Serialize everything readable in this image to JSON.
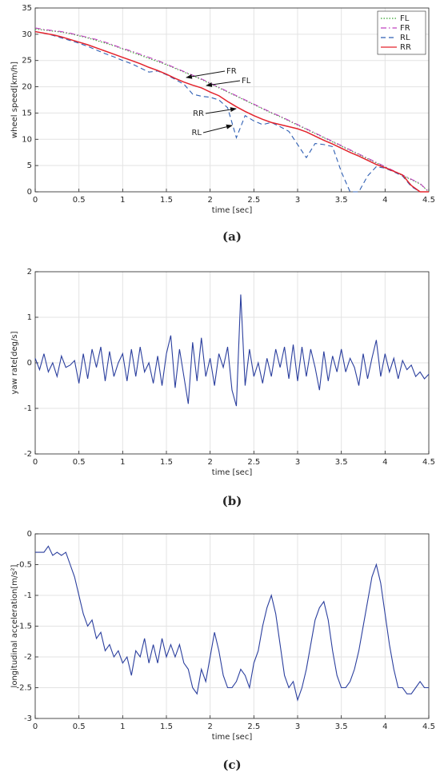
{
  "chart_data": [
    {
      "type": "line",
      "caption": "(a)",
      "xlabel": "time [sec]",
      "ylabel": "wheel speed[km/h]",
      "xlim": [
        0,
        4.5
      ],
      "ylim": [
        0,
        35
      ],
      "xticks": [
        0,
        0.5,
        1,
        1.5,
        2,
        2.5,
        3,
        3.5,
        4,
        4.5
      ],
      "yticks": [
        0,
        5,
        10,
        15,
        20,
        25,
        30,
        35
      ],
      "grid": true,
      "legend": "upper right",
      "annotations": [
        "FR",
        "FL",
        "RR",
        "RL"
      ],
      "x": [
        0,
        0.1,
        0.2,
        0.3,
        0.4,
        0.5,
        0.6,
        0.7,
        0.8,
        0.9,
        1,
        1.1,
        1.2,
        1.3,
        1.4,
        1.5,
        1.6,
        1.7,
        1.8,
        1.9,
        2,
        2.1,
        2.2,
        2.3,
        2.4,
        2.5,
        2.6,
        2.7,
        2.8,
        2.9,
        3,
        3.1,
        3.2,
        3.3,
        3.4,
        3.5,
        3.6,
        3.7,
        3.8,
        3.9,
        4,
        4.1,
        4.2,
        4.3,
        4.4,
        4.5
      ],
      "series": [
        {
          "name": "FL",
          "color": "#33a02c",
          "linestyle": "dotted",
          "values": [
            31,
            30.8,
            30.6,
            30.4,
            30.1,
            29.7,
            29.3,
            28.8,
            28.3,
            27.8,
            27.2,
            26.6,
            26,
            25.4,
            24.8,
            24.2,
            23.5,
            22.8,
            22.1,
            21.4,
            20.6,
            19.8,
            19,
            18.2,
            17.4,
            16.6,
            15.8,
            15,
            14.3,
            13.5,
            12.7,
            11.9,
            11.1,
            10.3,
            9.5,
            8.7,
            7.9,
            7.1,
            6.3,
            5.5,
            4.7,
            3.9,
            3.1,
            2.3,
            1.5,
            0
          ]
        },
        {
          "name": "FR",
          "color": "#bf40bf",
          "linestyle": "dashdot",
          "values": [
            31.2,
            30.9,
            30.7,
            30.5,
            30.2,
            29.8,
            29.4,
            29,
            28.5,
            27.9,
            27.3,
            26.8,
            26.2,
            25.6,
            25,
            24.3,
            23.6,
            22.9,
            22.2,
            21.5,
            20.7,
            19.9,
            19.1,
            18.3,
            17.5,
            16.7,
            15.9,
            15.1,
            14.4,
            13.6,
            12.8,
            12,
            11.2,
            10.4,
            9.6,
            8.8,
            8,
            7.2,
            6.4,
            5.6,
            4.8,
            4,
            3.2,
            2.4,
            1.6,
            0
          ]
        },
        {
          "name": "RL",
          "color": "#2f5fb3",
          "linestyle": "dashed",
          "values": [
            30.5,
            30.2,
            29.8,
            29.3,
            28.8,
            28.3,
            27.7,
            27,
            26.3,
            25.7,
            25,
            24.4,
            23.6,
            22.8,
            23,
            22.3,
            21.4,
            20.5,
            18.6,
            18.2,
            18,
            17.5,
            16,
            10.3,
            14.5,
            13.5,
            12.8,
            13.2,
            12.4,
            11.5,
            9,
            6.5,
            9.2,
            9,
            8.6,
            3.8,
            0,
            0,
            3,
            4.8,
            4.5,
            3.8,
            3,
            1,
            0,
            0
          ]
        },
        {
          "name": "RR",
          "color": "#e3232c",
          "linestyle": "solid",
          "values": [
            30.5,
            30.2,
            29.9,
            29.5,
            29,
            28.5,
            28,
            27.4,
            26.8,
            26.2,
            25.6,
            25,
            24.4,
            23.7,
            23.1,
            22.4,
            21.6,
            20.9,
            20.3,
            19.8,
            19,
            18.3,
            17.2,
            16.2,
            15.3,
            14.5,
            13.8,
            13.2,
            12.8,
            12.4,
            12,
            11.4,
            10.6,
            9.8,
            9.1,
            8.3,
            7.5,
            6.8,
            6,
            5.2,
            4.6,
            3.9,
            3.2,
            1.2,
            0,
            0
          ]
        }
      ]
    },
    {
      "type": "line",
      "caption": "(b)",
      "xlabel": "time [sec]",
      "ylabel": "yaw rate[deg/s]",
      "xlim": [
        0,
        4.5
      ],
      "ylim": [
        -2,
        2
      ],
      "xticks": [
        0,
        0.5,
        1,
        1.5,
        2,
        2.5,
        3,
        3.5,
        4,
        4.5
      ],
      "yticks": [
        -2,
        -1,
        0,
        1,
        2
      ],
      "grid": true,
      "x": [
        0,
        0.05,
        0.1,
        0.15,
        0.2,
        0.25,
        0.3,
        0.35,
        0.4,
        0.45,
        0.5,
        0.55,
        0.6,
        0.65,
        0.7,
        0.75,
        0.8,
        0.85,
        0.9,
        0.95,
        1,
        1.05,
        1.1,
        1.15,
        1.2,
        1.25,
        1.3,
        1.35,
        1.4,
        1.45,
        1.5,
        1.55,
        1.6,
        1.65,
        1.7,
        1.75,
        1.8,
        1.85,
        1.9,
        1.95,
        2,
        2.05,
        2.1,
        2.15,
        2.2,
        2.25,
        2.3,
        2.35,
        2.4,
        2.45,
        2.5,
        2.55,
        2.6,
        2.65,
        2.7,
        2.75,
        2.8,
        2.85,
        2.9,
        2.95,
        3,
        3.05,
        3.1,
        3.15,
        3.2,
        3.25,
        3.3,
        3.35,
        3.4,
        3.45,
        3.5,
        3.55,
        3.6,
        3.65,
        3.7,
        3.75,
        3.8,
        3.85,
        3.9,
        3.95,
        4,
        4.05,
        4.1,
        4.15,
        4.2,
        4.25,
        4.3,
        4.35,
        4.4,
        4.45,
        4.5
      ],
      "series": [
        {
          "name": "yaw rate",
          "color": "#2b3f9e",
          "linestyle": "solid",
          "values": [
            0.1,
            -0.15,
            0.2,
            -0.2,
            0,
            -0.3,
            0.15,
            -0.1,
            -0.05,
            0.05,
            -0.45,
            0.2,
            -0.35,
            0.3,
            -0.1,
            0.35,
            -0.4,
            0.25,
            -0.3,
            0,
            0.2,
            -0.4,
            0.3,
            -0.3,
            0.35,
            -0.2,
            0,
            -0.45,
            0.15,
            -0.5,
            0.2,
            0.6,
            -0.55,
            0.3,
            -0.3,
            -0.9,
            0.45,
            -0.4,
            0.55,
            -0.3,
            0.1,
            -0.5,
            0.2,
            -0.1,
            0.35,
            -0.6,
            -0.95,
            1.5,
            -0.5,
            0.3,
            -0.3,
            0,
            -0.45,
            0.1,
            -0.3,
            0.3,
            -0.1,
            0.35,
            -0.35,
            0.4,
            -0.4,
            0.35,
            -0.3,
            0.3,
            -0.1,
            -0.6,
            0.25,
            -0.4,
            0.15,
            -0.2,
            0.3,
            -0.2,
            0.1,
            -0.1,
            -0.5,
            0.2,
            -0.35,
            0.1,
            0.5,
            -0.3,
            0.2,
            -0.2,
            0.1,
            -0.35,
            0.05,
            -0.15,
            -0.05,
            -0.3,
            -0.2,
            -0.35,
            -0.25
          ]
        }
      ]
    },
    {
      "type": "line",
      "caption": "(c)",
      "xlabel": "time [sec]",
      "ylabel": "longitudinal acceleration[m/s²]",
      "xlim": [
        0,
        4.5
      ],
      "ylim": [
        -3,
        0
      ],
      "xticks": [
        0,
        0.5,
        1,
        1.5,
        2,
        2.5,
        3,
        3.5,
        4,
        4.5
      ],
      "yticks": [
        -3,
        -2.5,
        -2,
        -1.5,
        -1,
        -0.5,
        0
      ],
      "grid": true,
      "x": [
        0,
        0.05,
        0.1,
        0.15,
        0.2,
        0.25,
        0.3,
        0.35,
        0.4,
        0.45,
        0.5,
        0.55,
        0.6,
        0.65,
        0.7,
        0.75,
        0.8,
        0.85,
        0.9,
        0.95,
        1,
        1.05,
        1.1,
        1.15,
        1.2,
        1.25,
        1.3,
        1.35,
        1.4,
        1.45,
        1.5,
        1.55,
        1.6,
        1.65,
        1.7,
        1.75,
        1.8,
        1.85,
        1.9,
        1.95,
        2,
        2.05,
        2.1,
        2.15,
        2.2,
        2.25,
        2.3,
        2.35,
        2.4,
        2.45,
        2.5,
        2.55,
        2.6,
        2.65,
        2.7,
        2.75,
        2.8,
        2.85,
        2.9,
        2.95,
        3,
        3.05,
        3.1,
        3.15,
        3.2,
        3.25,
        3.3,
        3.35,
        3.4,
        3.45,
        3.5,
        3.55,
        3.6,
        3.65,
        3.7,
        3.75,
        3.8,
        3.85,
        3.9,
        3.95,
        4,
        4.05,
        4.1,
        4.15,
        4.2,
        4.25,
        4.3,
        4.35,
        4.4,
        4.45,
        4.5
      ],
      "series": [
        {
          "name": "longitudinal acceleration",
          "color": "#2b3f9e",
          "linestyle": "solid",
          "values": [
            -0.3,
            -0.3,
            -0.3,
            -0.2,
            -0.35,
            -0.3,
            -0.35,
            -0.3,
            -0.5,
            -0.7,
            -1,
            -1.3,
            -1.5,
            -1.4,
            -1.7,
            -1.6,
            -1.9,
            -1.8,
            -2,
            -1.9,
            -2.1,
            -2,
            -2.3,
            -1.9,
            -2,
            -1.7,
            -2.1,
            -1.8,
            -2.1,
            -1.7,
            -2,
            -1.8,
            -2,
            -1.8,
            -2.1,
            -2.2,
            -2.5,
            -2.6,
            -2.2,
            -2.4,
            -2,
            -1.6,
            -1.9,
            -2.3,
            -2.5,
            -2.5,
            -2.4,
            -2.2,
            -2.3,
            -2.5,
            -2.1,
            -1.9,
            -1.5,
            -1.2,
            -1,
            -1.3,
            -1.8,
            -2.3,
            -2.5,
            -2.4,
            -2.7,
            -2.5,
            -2.2,
            -1.8,
            -1.4,
            -1.2,
            -1.1,
            -1.4,
            -1.9,
            -2.3,
            -2.5,
            -2.5,
            -2.4,
            -2.2,
            -1.9,
            -1.5,
            -1.1,
            -0.7,
            -0.5,
            -0.8,
            -1.3,
            -1.8,
            -2.2,
            -2.5,
            -2.5,
            -2.6,
            -2.6,
            -2.5,
            -2.4,
            -2.5,
            -2.5
          ]
        }
      ]
    }
  ]
}
